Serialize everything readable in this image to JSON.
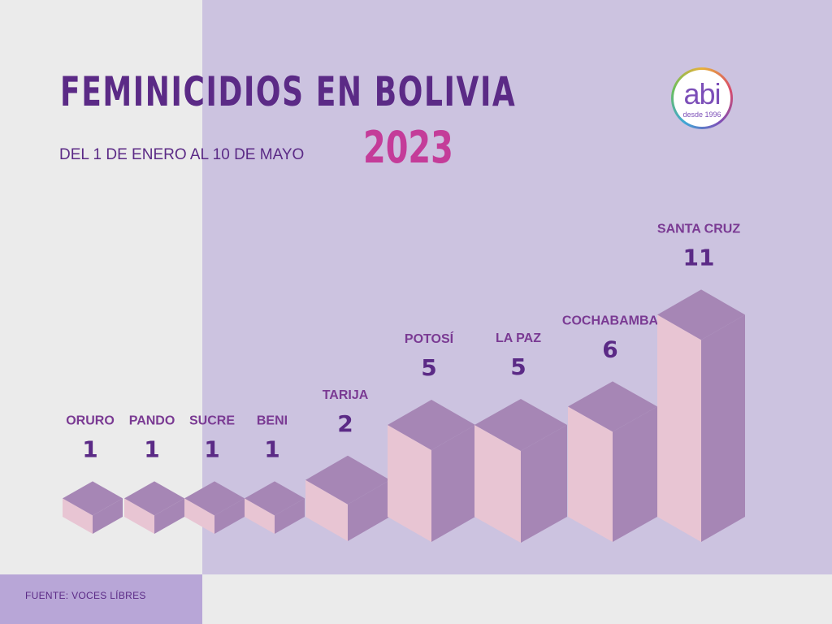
{
  "header": {
    "title": "FEMINICIDIOS EN BOLIVIA",
    "year": "2023",
    "subtitle": "DEL 1 DE ENERO AL 10 DE MAYO"
  },
  "logo": {
    "name": "abi",
    "tagline": "desde 1996"
  },
  "footer": {
    "source": "FUENTE: VOCES LÍBRES"
  },
  "colors": {
    "title": "#5b2a86",
    "year": "#c43c99",
    "bar_front": "#e8c5d3",
    "bar_side": "#a686b5",
    "bar_top": "#a686b5",
    "label": "#7a3a93",
    "value": "#5b2a86"
  },
  "chart_data": {
    "type": "bar",
    "title": "FEMINICIDIOS EN BOLIVIA",
    "categories": [
      "ORURO",
      "PANDO",
      "SUCRE",
      "BENI",
      "TARIJA",
      "POTOSÍ",
      "LA PAZ",
      "COCHABAMBA",
      "SANTA CRUZ"
    ],
    "values": [
      1,
      1,
      1,
      1,
      2,
      5,
      5,
      6,
      11
    ],
    "data_labels": [
      "1",
      "1",
      "1",
      "1",
      "2",
      "5",
      "5",
      "6",
      "11"
    ],
    "xlabel": "",
    "ylabel": "",
    "grid": false,
    "legend": "none"
  }
}
